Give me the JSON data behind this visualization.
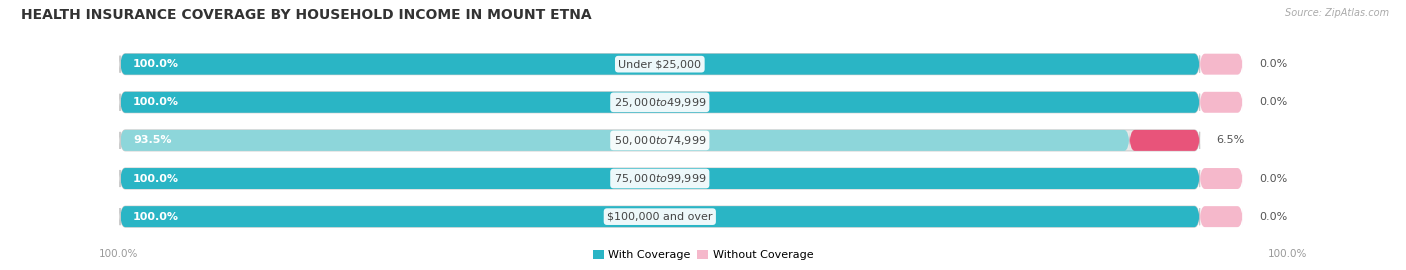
{
  "title": "HEALTH INSURANCE COVERAGE BY HOUSEHOLD INCOME IN MOUNT ETNA",
  "source": "Source: ZipAtlas.com",
  "categories": [
    "Under $25,000",
    "$25,000 to $49,999",
    "$50,000 to $74,999",
    "$75,000 to $99,999",
    "$100,000 and over"
  ],
  "with_coverage": [
    100.0,
    100.0,
    93.5,
    100.0,
    100.0
  ],
  "without_coverage": [
    0.0,
    0.0,
    6.5,
    0.0,
    0.0
  ],
  "color_with_full": "#2ab5c5",
  "color_with_partial": "#8dd6da",
  "color_without_light": "#f5b8cb",
  "color_without_strong": "#e8547a",
  "color_bar_bg": "#e8e8e8",
  "color_bg": "#f5f5f5",
  "title_fontsize": 10,
  "label_fontsize": 8,
  "tick_fontsize": 7.5,
  "legend_fontsize": 8
}
